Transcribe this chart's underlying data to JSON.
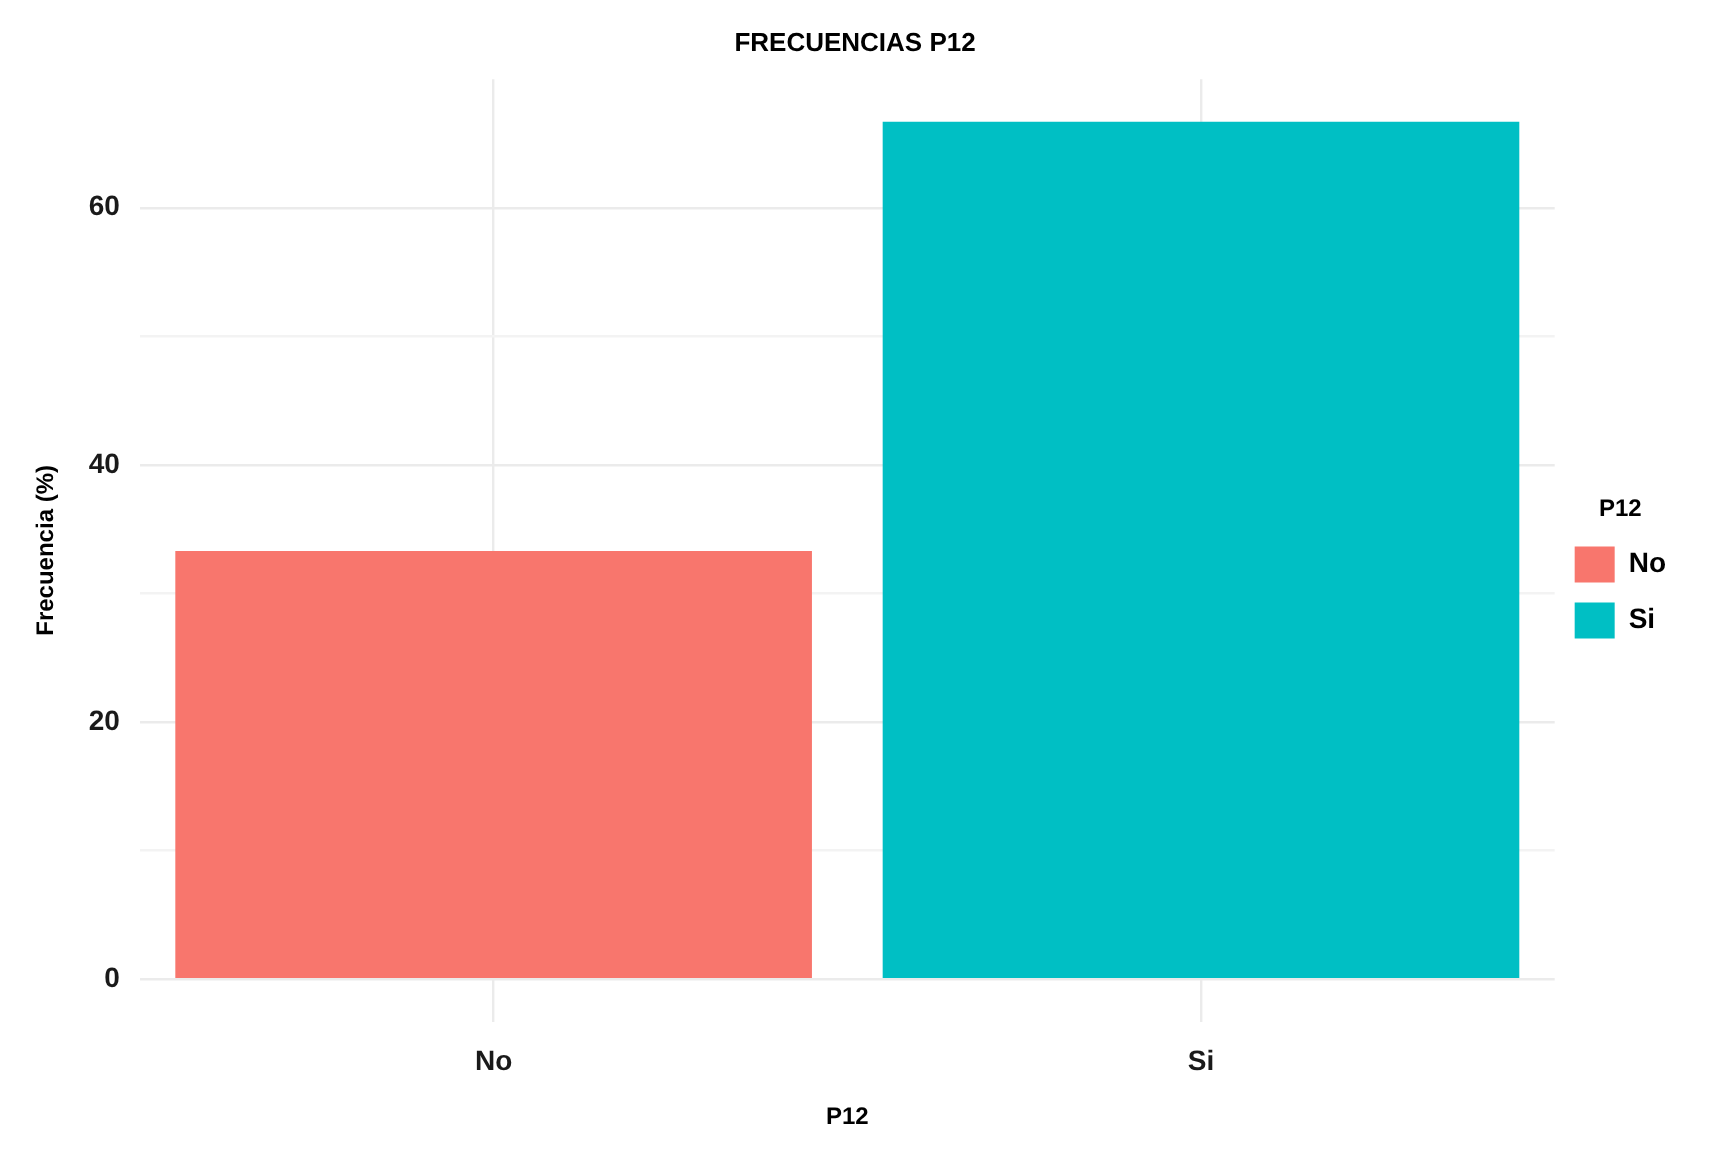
{
  "chart_data": {
    "type": "bar",
    "title": "FRECUENCIAS P12",
    "xlabel": "P12",
    "ylabel": "Frecuencia (%)",
    "legend_title": "P12",
    "categories": [
      "No",
      "Si"
    ],
    "series": [
      {
        "name": "No",
        "color": "#f8766d",
        "values": [
          33.3,
          null
        ]
      },
      {
        "name": "Si",
        "color": "#00bfc4",
        "values": [
          null,
          66.7
        ]
      }
    ],
    "ylim": [
      -3.3,
      70
    ],
    "yticks": [
      0,
      {
        "value": 10,
        "label": null
      },
      20,
      {
        "value": 30,
        "label": null
      },
      40,
      {
        "value": 50,
        "label": null
      },
      60
    ],
    "grid": true,
    "legend": "right"
  }
}
